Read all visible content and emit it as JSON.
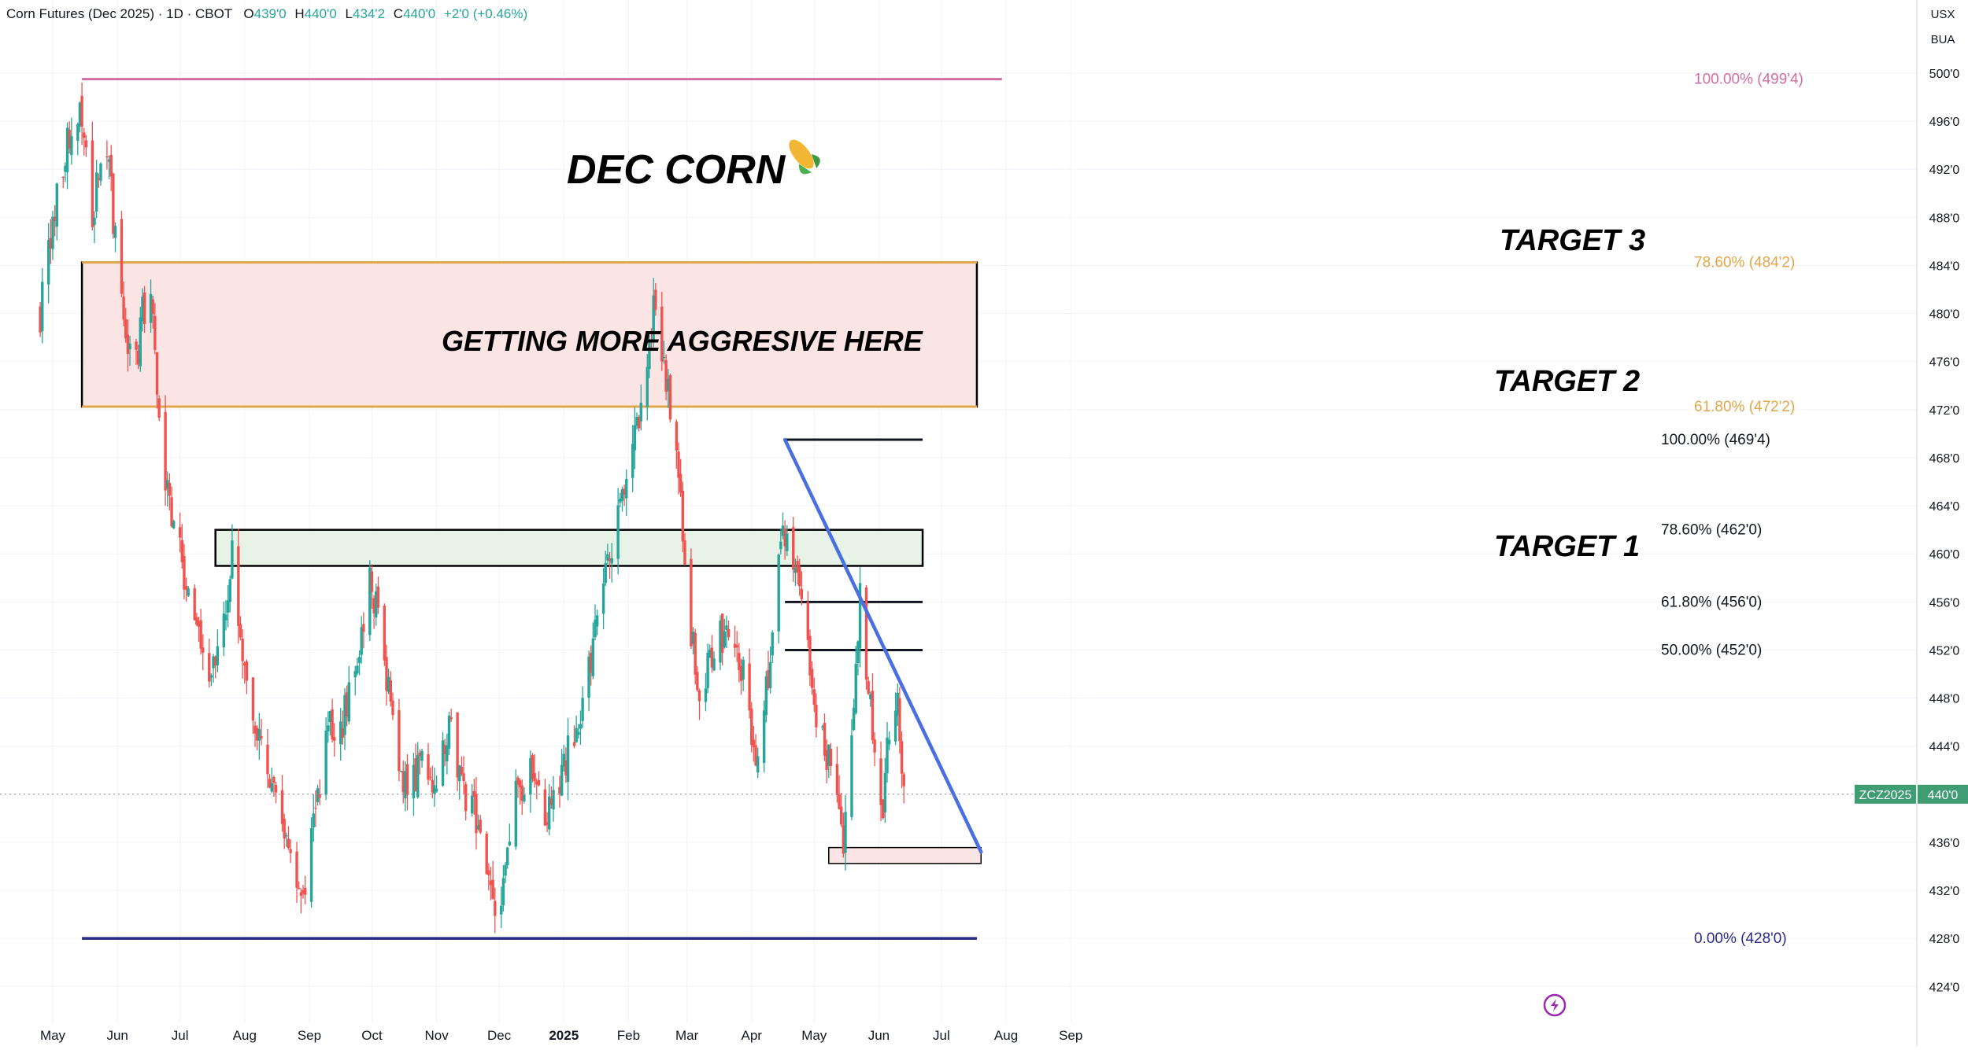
{
  "header": {
    "symbol": "Corn Futures (Dec 2025) · 1D · CBOT",
    "open_label": "O",
    "open": "439'0",
    "high_label": "H",
    "high": "440'0",
    "low_label": "L",
    "low": "434'2",
    "close_label": "C",
    "close": "440'0",
    "change": "+2'0 (+0.46%)"
  },
  "axis": {
    "currency": "USX",
    "unit": "BUA",
    "y_ticks": [
      "500'0",
      "496'0",
      "492'0",
      "488'0",
      "484'0",
      "480'0",
      "476'0",
      "472'0",
      "468'0",
      "464'0",
      "460'0",
      "456'0",
      "452'0",
      "448'0",
      "444'0",
      "440'0",
      "436'0",
      "432'0",
      "428'0",
      "424'0"
    ],
    "x_ticks": [
      "May",
      "Jun",
      "Jul",
      "Aug",
      "Sep",
      "Oct",
      "Nov",
      "Dec",
      "2025",
      "Feb",
      "Mar",
      "Apr",
      "May",
      "Jun",
      "Jul",
      "Aug",
      "Sep"
    ]
  },
  "last_price": {
    "symbol": "ZCZ2025",
    "price": "440'0"
  },
  "annotations": {
    "title": "DEC CORN",
    "aggressive_text": "GETTING MORE AGGRESIVE HERE",
    "target1": "TARGET 1",
    "target2": "TARGET 2",
    "target3": "TARGET 3"
  },
  "fib_levels": [
    {
      "label": "100.00% (499'4)",
      "price": 499.5,
      "color": "#d36fa0"
    },
    {
      "label": "78.60% (484'2)",
      "price": 484.25,
      "color": "#e0a84a"
    },
    {
      "label": "61.80% (472'2)",
      "price": 472.25,
      "color": "#e0a84a"
    },
    {
      "label": "0.00% (428'0)",
      "price": 428.0,
      "color": "#2a2a8a"
    },
    {
      "label": "100.00% (469'4)",
      "price": 469.5,
      "color": "#131722"
    },
    {
      "label": "78.60% (462'0)",
      "price": 462.0,
      "color": "#131722"
    },
    {
      "label": "61.80% (456'0)",
      "price": 456.0,
      "color": "#131722"
    },
    {
      "label": "50.00% (452'0)",
      "price": 452.0,
      "color": "#131722"
    }
  ],
  "colors": {
    "up": "#26a69a",
    "down": "#ef5350",
    "trendline": "#4a6fe0",
    "zone_red": "#fbe4e4",
    "zone_green": "#e6f3e6",
    "last_price_bg": "#3f9c73"
  },
  "chart_data": {
    "type": "candlestick",
    "title": "DEC CORN",
    "ylim": [
      422,
      503
    ],
    "x_range": [
      "2024-04-25",
      "2025-09-12"
    ],
    "daily_closes": [
      [
        "2024-04-25",
        480
      ],
      [
        "2024-05-01",
        488
      ],
      [
        "2024-05-08",
        494
      ],
      [
        "2024-05-14",
        498
      ],
      [
        "2024-05-16",
        496
      ],
      [
        "2024-05-20",
        488
      ],
      [
        "2024-05-23",
        492
      ],
      [
        "2024-05-28",
        492
      ],
      [
        "2024-05-31",
        486
      ],
      [
        "2024-06-05",
        478
      ],
      [
        "2024-06-10",
        476
      ],
      [
        "2024-06-13",
        480
      ],
      [
        "2024-06-17",
        482
      ],
      [
        "2024-06-20",
        474
      ],
      [
        "2024-06-25",
        465
      ],
      [
        "2024-07-01",
        460
      ],
      [
        "2024-07-08",
        454
      ],
      [
        "2024-07-15",
        450
      ],
      [
        "2024-07-22",
        455
      ],
      [
        "2024-07-26",
        460
      ],
      [
        "2024-07-31",
        450
      ],
      [
        "2024-08-08",
        444
      ],
      [
        "2024-08-15",
        440
      ],
      [
        "2024-08-22",
        436
      ],
      [
        "2024-08-28",
        431
      ],
      [
        "2024-09-04",
        438
      ],
      [
        "2024-09-10",
        446
      ],
      [
        "2024-09-17",
        446
      ],
      [
        "2024-09-24",
        452
      ],
      [
        "2024-09-30",
        458
      ],
      [
        "2024-10-04",
        455
      ],
      [
        "2024-10-11",
        446
      ],
      [
        "2024-10-18",
        440
      ],
      [
        "2024-10-25",
        443
      ],
      [
        "2024-10-31",
        440
      ],
      [
        "2024-11-07",
        446
      ],
      [
        "2024-11-14",
        440
      ],
      [
        "2024-11-21",
        438
      ],
      [
        "2024-11-26",
        432
      ],
      [
        "2024-12-02",
        430
      ],
      [
        "2024-12-09",
        440
      ],
      [
        "2024-12-16",
        442
      ],
      [
        "2024-12-23",
        438
      ],
      [
        "2024-12-31",
        442
      ],
      [
        "2025-01-08",
        446
      ],
      [
        "2025-01-13",
        450
      ],
      [
        "2025-01-17",
        456
      ],
      [
        "2025-01-24",
        460
      ],
      [
        "2025-01-31",
        466
      ],
      [
        "2025-02-06",
        472
      ],
      [
        "2025-02-13",
        480
      ],
      [
        "2025-02-19",
        474
      ],
      [
        "2025-02-24",
        470
      ],
      [
        "2025-02-28",
        458
      ],
      [
        "2025-03-07",
        448
      ],
      [
        "2025-03-14",
        452
      ],
      [
        "2025-03-21",
        454
      ],
      [
        "2025-03-28",
        450
      ],
      [
        "2025-04-04",
        442
      ],
      [
        "2025-04-10",
        452
      ],
      [
        "2025-04-16",
        462
      ],
      [
        "2025-04-22",
        458
      ],
      [
        "2025-04-28",
        452
      ],
      [
        "2025-05-02",
        446
      ],
      [
        "2025-05-09",
        442
      ],
      [
        "2025-05-15",
        436
      ],
      [
        "2025-05-20",
        448
      ],
      [
        "2025-05-23",
        456
      ],
      [
        "2025-05-29",
        446
      ],
      [
        "2025-06-03",
        438
      ],
      [
        "2025-06-06",
        446
      ],
      [
        "2025-06-10",
        449
      ],
      [
        "2025-06-13",
        440
      ]
    ],
    "trendline": {
      "from": [
        "2025-04-17",
        469.5
      ],
      "to": [
        "2025-07-20",
        435.2
      ]
    },
    "zones": [
      {
        "name": "GETTING MORE AGGRESIVE HERE",
        "from": "2024-05-15",
        "to": "2025-07-18",
        "low": 472.25,
        "high": 484.25
      },
      {
        "name": "TARGET 1",
        "from": "2024-07-18",
        "to": "2025-06-22",
        "low": 459.0,
        "high": 462.0
      },
      {
        "name": "support",
        "from": "2025-05-08",
        "to": "2025-07-20",
        "low": 434.5,
        "high": 435.3
      }
    ],
    "last_price": 440.0
  }
}
